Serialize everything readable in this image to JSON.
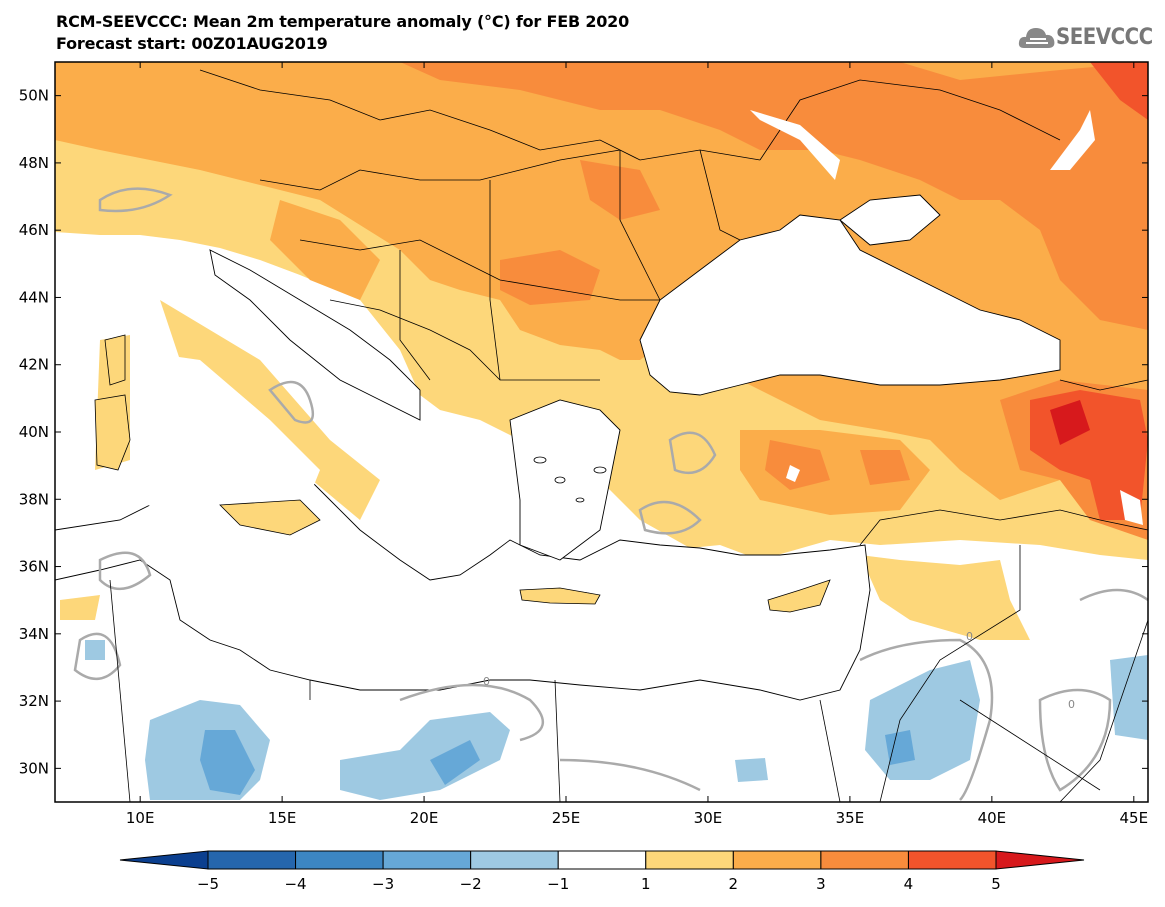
{
  "header": {
    "title": "RCM-SEEVCCC: Mean 2m temperature anomaly (°C) for FEB 2020",
    "subtitle": "Forecast start: 00Z01AUG2019",
    "logo_text": "SEEVCCC"
  },
  "map": {
    "lat_labels": [
      "50N",
      "48N",
      "46N",
      "44N",
      "42N",
      "40N",
      "38N",
      "36N",
      "34N",
      "32N",
      "30N"
    ],
    "lon_labels": [
      "10E",
      "15E",
      "20E",
      "25E",
      "30E",
      "35E",
      "40E",
      "45E"
    ],
    "lat_values": [
      50,
      48,
      46,
      44,
      42,
      40,
      38,
      36,
      34,
      32,
      30
    ],
    "lon_values": [
      10,
      15,
      20,
      25,
      30,
      35,
      40,
      45
    ],
    "extent": {
      "lon_min": 7,
      "lon_max": 45.5,
      "lat_min": 29,
      "lat_max": 51
    },
    "contour_label": "0"
  },
  "colorbar": {
    "labels": [
      "−5",
      "−4",
      "−3",
      "−2",
      "−1",
      "1",
      "2",
      "3",
      "4",
      "5"
    ],
    "colors": [
      "#0b3f8f",
      "#2566ad",
      "#3c86c3",
      "#66a8d7",
      "#9ec9e2",
      "#ffffff",
      "#fdd77a",
      "#fbad4a",
      "#f88c3c",
      "#f2542b",
      "#d7191c"
    ]
  }
}
